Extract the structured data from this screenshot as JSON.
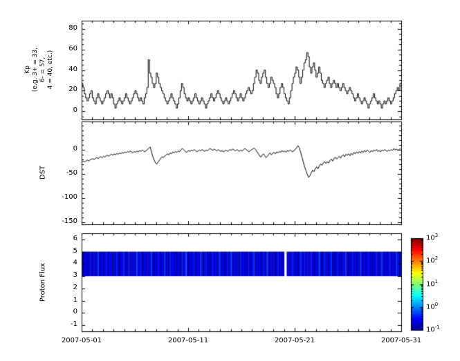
{
  "figure": {
    "bg": "#ffffff",
    "fg": "#000000"
  },
  "x_axis": {
    "start_day": 0,
    "end_day": 30,
    "tick_days": [
      0,
      10,
      20,
      30
    ],
    "tick_labels": [
      "2007-05-01",
      "2007-05-11",
      "2007-05-21",
      "2007-05-31"
    ]
  },
  "chart_data": [
    {
      "type": "line",
      "subtype": "step",
      "ylabel_lines": [
        "Kp",
        "(e.g. 3+ = 33,",
        "6- = 57,",
        "4 = 40, etc.)"
      ],
      "ylim": [
        -8,
        88
      ],
      "yticks": [
        0,
        20,
        40,
        60,
        80
      ],
      "line_color": "#000000",
      "values": [
        27,
        23,
        17,
        13,
        10,
        13,
        17,
        20,
        13,
        10,
        7,
        13,
        17,
        13,
        10,
        7,
        10,
        13,
        17,
        20,
        17,
        13,
        17,
        13,
        7,
        3,
        7,
        10,
        13,
        10,
        7,
        10,
        13,
        17,
        13,
        10,
        7,
        10,
        13,
        17,
        20,
        17,
        13,
        10,
        13,
        10,
        7,
        13,
        17,
        23,
        50,
        37,
        33,
        27,
        23,
        27,
        37,
        33,
        27,
        23,
        20,
        17,
        13,
        10,
        7,
        10,
        13,
        17,
        13,
        10,
        7,
        3,
        7,
        13,
        20,
        27,
        23,
        17,
        13,
        10,
        13,
        10,
        7,
        10,
        13,
        17,
        13,
        10,
        7,
        10,
        13,
        10,
        7,
        3,
        7,
        10,
        13,
        17,
        13,
        10,
        13,
        17,
        20,
        17,
        13,
        10,
        7,
        10,
        13,
        10,
        7,
        10,
        13,
        17,
        20,
        17,
        13,
        10,
        13,
        17,
        13,
        10,
        13,
        17,
        20,
        23,
        20,
        17,
        20,
        27,
        33,
        40,
        37,
        30,
        27,
        33,
        37,
        40,
        33,
        27,
        23,
        27,
        33,
        30,
        27,
        23,
        17,
        13,
        17,
        23,
        27,
        23,
        17,
        13,
        10,
        7,
        13,
        20,
        27,
        33,
        37,
        43,
        40,
        33,
        27,
        33,
        40,
        47,
        50,
        57,
        53,
        43,
        37,
        43,
        47,
        40,
        33,
        37,
        43,
        37,
        30,
        27,
        23,
        27,
        30,
        33,
        27,
        23,
        27,
        30,
        27,
        23,
        27,
        23,
        20,
        23,
        27,
        23,
        20,
        17,
        20,
        23,
        20,
        17,
        13,
        10,
        13,
        17,
        13,
        10,
        7,
        10,
        13,
        10,
        7,
        3,
        7,
        10,
        13,
        17,
        13,
        10,
        7,
        10,
        7,
        3,
        7,
        10,
        7,
        10,
        13,
        10,
        7,
        10,
        13,
        17,
        20,
        23,
        20,
        27
      ]
    },
    {
      "type": "line",
      "ylabel": "DST",
      "ylim": [
        -155,
        58
      ],
      "yticks": [
        0,
        -50,
        -100,
        -150
      ],
      "line_color": "#000000",
      "values": [
        -25,
        -24,
        -26,
        -23,
        -22,
        -24,
        -21,
        -20,
        -19,
        -21,
        -18,
        -17,
        -19,
        -16,
        -15,
        -17,
        -14,
        -16,
        -13,
        -12,
        -14,
        -11,
        -10,
        -12,
        -9,
        -11,
        -8,
        -10,
        -7,
        -9,
        -6,
        -8,
        -5,
        -7,
        -4,
        -6,
        -3,
        -5,
        -7,
        -4,
        -6,
        -3,
        -5,
        -2,
        -4,
        -1,
        -3,
        -5,
        -2,
        0,
        3,
        5,
        -5,
        -15,
        -22,
        -28,
        -30,
        -26,
        -22,
        -18,
        -15,
        -17,
        -13,
        -11,
        -9,
        -11,
        -7,
        -9,
        -5,
        -7,
        -4,
        -6,
        -3,
        -5,
        -1,
        2,
        0,
        -3,
        -6,
        -4,
        -2,
        -4,
        -1,
        -3,
        0,
        -2,
        -5,
        -3,
        -1,
        -3,
        0,
        -2,
        -4,
        -1,
        -3,
        0,
        2,
        0,
        -2,
        1,
        -1,
        -3,
        0,
        -2,
        -4,
        -2,
        -5,
        -3,
        -1,
        -4,
        -2,
        0,
        -2,
        1,
        -1,
        -3,
        0,
        -2,
        -4,
        -1,
        -3,
        -1,
        2,
        0,
        -2,
        -5,
        -3,
        -1,
        1,
        3,
        0,
        -4,
        -8,
        -12,
        -16,
        -12,
        -9,
        -13,
        -17,
        -14,
        -10,
        -7,
        -11,
        -8,
        -6,
        -9,
        -5,
        -7,
        -4,
        -6,
        -2,
        -5,
        -3,
        -6,
        -2,
        -4,
        -1,
        -3,
        -5,
        -2,
        0,
        4,
        8,
        3,
        -6,
        -16,
        -26,
        -36,
        -44,
        -52,
        -58,
        -54,
        -48,
        -43,
        -46,
        -40,
        -36,
        -40,
        -34,
        -30,
        -33,
        -28,
        -25,
        -29,
        -25,
        -28,
        -23,
        -20,
        -24,
        -19,
        -16,
        -20,
        -17,
        -14,
        -18,
        -13,
        -11,
        -15,
        -10,
        -12,
        -9,
        -13,
        -8,
        -11,
        -6,
        -9,
        -5,
        -8,
        -4,
        -7,
        -3,
        -6,
        -2,
        -5,
        -1,
        -4,
        -6,
        -2,
        -5,
        -1,
        -3,
        0,
        -4,
        -2,
        -5,
        -1,
        -3,
        0,
        -2,
        -4,
        -1,
        -3,
        0,
        -2,
        2,
        -1,
        1,
        -2,
        0,
        2
      ]
    },
    {
      "type": "heatmap",
      "ylabel": "Proton Flux",
      "ylim": [
        -1.5,
        6.5
      ],
      "yticks": [
        6,
        5,
        4,
        3,
        2,
        1,
        0,
        -1
      ],
      "band": {
        "ymin": 3,
        "ymax": 5
      },
      "gap": {
        "start_day": 18.95,
        "end_day": 19.2
      },
      "value_range": [
        -1,
        3
      ],
      "colormap": "jet",
      "log_values": [
        -0.7,
        -0.9,
        -0.5,
        -0.8,
        -0.6,
        -0.9,
        -0.4,
        -0.7,
        -0.8,
        -0.5,
        -0.9,
        -0.6,
        -0.3,
        -0.8,
        -0.7,
        -0.5,
        -0.9,
        -0.7,
        -0.4,
        -0.6,
        -0.8,
        -0.5,
        -0.7,
        -0.9,
        -0.6,
        -0.8,
        -0.4,
        -0.7,
        -0.9,
        -0.5,
        -0.8,
        -0.3,
        -0.6,
        -0.9,
        -0.7,
        -0.4,
        -0.8,
        -0.6,
        -0.9,
        -0.5,
        -0.7,
        -0.2,
        -0.8,
        -0.6,
        -0.4,
        -0.9,
        -0.7,
        -0.5,
        -0.8,
        -0.5,
        -0.9,
        -0.6,
        -0.3,
        -0.7,
        -0.9,
        -0.5,
        -0.8,
        -0.4,
        -0.6,
        -0.9,
        -0.5,
        -0.7,
        -0.3,
        -0.8,
        -0.6,
        -0.9,
        -0.4,
        -0.7,
        -0.5,
        -0.8,
        -0.6,
        -0.9,
        -0.5,
        -0.7,
        -0.9,
        -0.4,
        -0.8,
        -0.6,
        -0.2,
        -0.7,
        -0.9,
        -0.5,
        -0.8,
        -0.6,
        -0.4,
        -0.9,
        -0.7,
        -0.5,
        -0.8,
        -0.3,
        -0.6,
        -0.9,
        -0.7,
        -0.4,
        -0.8,
        -0.6,
        -0.9,
        -0.6,
        -0.4,
        -0.8,
        -0.5,
        -0.7,
        -0.9,
        -0.3,
        -0.6,
        -0.8,
        -0.5,
        -0.9,
        -0.7,
        -0.4,
        -0.8,
        -0.6,
        -0.2,
        -0.9,
        -0.5,
        -0.7,
        -0.8,
        -0.6,
        -0.9,
        -0.4,
        -0.7,
        -0.5,
        -0.8,
        -0.6,
        -0.9,
        -0.4,
        -0.7,
        -0.8,
        -0.5,
        -0.3,
        -0.9,
        -0.6,
        -0.8,
        -0.5,
        -0.7,
        -0.9,
        -0.4,
        -0.6,
        -0.8,
        -0.2,
        -0.7,
        -0.9,
        -0.5,
        -0.8,
        -0.6,
        -0.9,
        -0.7,
        -0.4,
        -0.8,
        -0.5,
        -0.9,
        -0.6,
        -0.3,
        -0.8,
        -0.7,
        -0.5,
        -0.9,
        -0.6,
        -0.4,
        -0.7,
        -0.8,
        -0.5,
        -0.9,
        -0.7,
        -0.3,
        -0.6,
        -0.8,
        -0.4,
        -0.9,
        -0.5,
        -0.7,
        -0.8,
        -0.4,
        -0.6,
        -0.9,
        -0.7,
        -0.5,
        -0.8,
        -0.2,
        -0.6,
        -0.9,
        -0.7,
        -0.4,
        -0.8,
        -0.6,
        -0.9,
        -0.5,
        -0.3,
        -0.8,
        -0.7,
        -0.9,
        -0.6,
        -0.4,
        -0.8,
        -0.6,
        -0.9,
        -0.5,
        -0.7,
        -0.3,
        -0.8,
        -0.9,
        -0.6,
        -0.7,
        -0.4,
        -0.8,
        -0.5,
        -0.9,
        -0.6,
        -0.8,
        -0.3,
        -0.7,
        -0.9,
        -0.5,
        -0.8,
        -0.6,
        -0.4,
        -0.8,
        -0.6,
        -0.9,
        -0.5,
        -0.7,
        -0.4,
        -0.8,
        -0.9,
        -0.6,
        -0.3,
        -0.7,
        -0.8,
        -0.5,
        -0.9,
        -0.6,
        -0.4,
        -0.8,
        -0.7,
        -0.5,
        -0.9,
        -0.3,
        -0.6,
        -0.8,
        -0.7
      ]
    }
  ],
  "colorbar": {
    "scale": "log",
    "exponent_ticks": [
      3,
      2,
      1,
      0,
      -1
    ],
    "colormap": "jet"
  }
}
